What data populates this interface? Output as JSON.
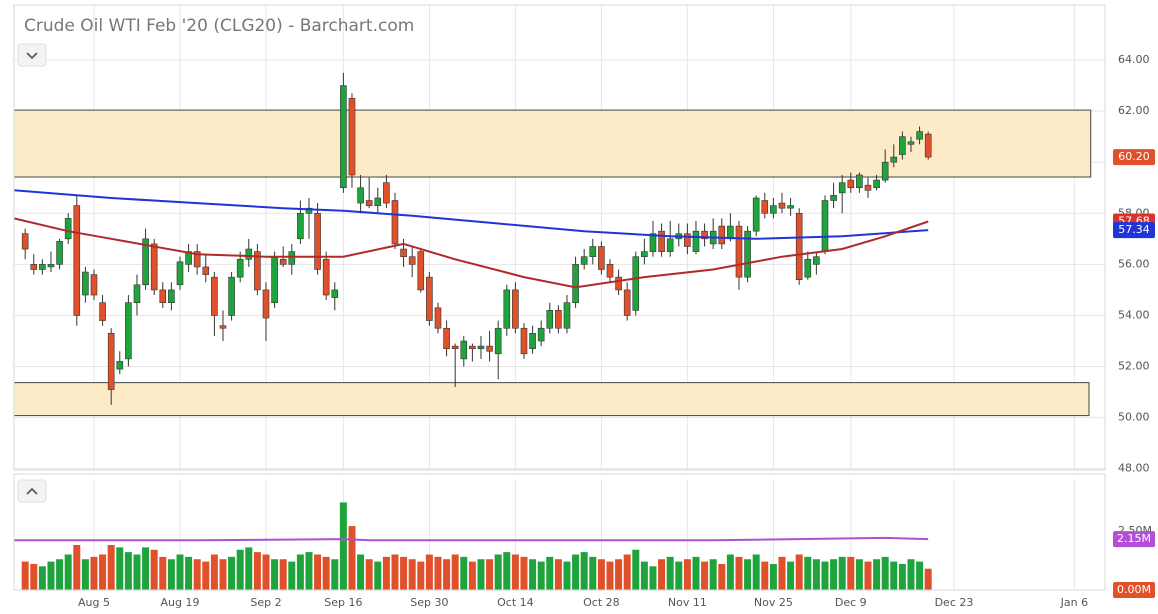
{
  "chart_data": [
    {
      "type": "candlestick",
      "title": "Crude Oil WTI Feb '20 (CLG20) - Barchart.com",
      "xlim": [
        -1.3,
        125.56
      ],
      "ylim": [
        47.95,
        66.35
      ],
      "yticks": [
        {
          "value": 48,
          "label": "48.00"
        },
        {
          "value": 50,
          "label": "50.00"
        },
        {
          "value": 52,
          "label": "52.00"
        },
        {
          "value": 54,
          "label": "54.00"
        },
        {
          "value": 56,
          "label": "56.00"
        },
        {
          "value": 58,
          "label": "58.00"
        },
        {
          "value": 60,
          "label": "60.00"
        },
        {
          "value": 62,
          "label": "62.00"
        },
        {
          "value": 64,
          "label": "64.00"
        }
      ],
      "up_color": "#1fa33c",
      "down_color": "#e0502a",
      "grid": true,
      "open": [
        57.2,
        56.0,
        55.8,
        55.9,
        56.0,
        57.0,
        58.3,
        54.8,
        55.6,
        54.5,
        53.3,
        51.9,
        52.3,
        54.5,
        55.2,
        56.8,
        55.0,
        54.5,
        55.2,
        56.0,
        56.5,
        55.9,
        55.5,
        53.6,
        54.0,
        55.5,
        56.2,
        56.5,
        55.0,
        54.5,
        56.2,
        56.0,
        57.0,
        58.0,
        58.0,
        56.2,
        54.7,
        59.0,
        62.5,
        58.4,
        58.5,
        58.3,
        59.2,
        58.5,
        56.6,
        56.3,
        56.5,
        55.5,
        54.3,
        53.5,
        52.8,
        52.3,
        52.8,
        52.7,
        52.8,
        52.5,
        53.5,
        55.0,
        53.5,
        52.7,
        53.0,
        53.5,
        54.2,
        53.5,
        54.5,
        56.0,
        56.3,
        56.7,
        56.0,
        55.5,
        55.0,
        54.2,
        56.3,
        56.5,
        57.3,
        56.5,
        57.0,
        57.2,
        56.5,
        57.3,
        56.8,
        57.5,
        57.0,
        57.5,
        55.5,
        57.3,
        58.5,
        58.0,
        58.4,
        58.2,
        58.0,
        55.5,
        56.0,
        56.5,
        58.5,
        58.8,
        59.3,
        59.0,
        59.1,
        59.0,
        59.3,
        60.0,
        60.3,
        60.7,
        60.9,
        61.1
      ],
      "high": [
        57.4,
        56.4,
        56.2,
        56.5,
        57.0,
        58.0,
        58.7,
        55.9,
        55.8,
        54.8,
        53.5,
        52.6,
        54.8,
        55.6,
        57.4,
        57.0,
        55.3,
        55.3,
        56.3,
        56.8,
        56.8,
        56.4,
        55.7,
        54.2,
        55.7,
        56.5,
        57.0,
        56.8,
        55.3,
        56.5,
        56.7,
        56.8,
        58.5,
        58.6,
        58.4,
        56.5,
        55.3,
        63.5,
        62.7,
        59.5,
        59.4,
        59.0,
        59.5,
        58.8,
        57.0,
        56.7,
        56.6,
        55.7,
        54.5,
        53.8,
        52.9,
        53.2,
        52.9,
        53.2,
        53.4,
        53.8,
        55.2,
        55.3,
        53.7,
        53.6,
        53.8,
        54.5,
        54.4,
        54.8,
        56.3,
        56.6,
        57.0,
        56.9,
        56.2,
        55.8,
        55.3,
        56.5,
        57.0,
        57.7,
        57.6,
        57.7,
        57.6,
        57.6,
        57.7,
        57.6,
        57.8,
        57.8,
        58.0,
        57.7,
        57.5,
        58.7,
        58.8,
        58.6,
        58.8,
        58.6,
        58.2,
        56.5,
        56.5,
        58.7,
        59.2,
        59.5,
        59.6,
        59.6,
        59.4,
        59.5,
        60.5,
        60.7,
        61.2,
        61.0,
        61.4,
        61.2
      ],
      "low": [
        56.2,
        55.6,
        55.6,
        55.7,
        55.8,
        56.8,
        53.6,
        54.5,
        54.6,
        53.6,
        50.5,
        51.7,
        52.0,
        54.0,
        55.0,
        54.8,
        54.3,
        54.2,
        55.0,
        55.7,
        55.6,
        55.3,
        53.2,
        53.0,
        53.8,
        55.3,
        55.9,
        54.8,
        53.0,
        54.3,
        55.9,
        55.6,
        56.8,
        57.0,
        55.6,
        54.6,
        54.2,
        58.8,
        59.0,
        58.0,
        58.2,
        58.0,
        58.2,
        56.6,
        55.9,
        55.5,
        54.9,
        53.6,
        53.3,
        52.4,
        51.2,
        52.0,
        52.2,
        52.3,
        52.2,
        51.5,
        53.2,
        53.3,
        52.3,
        52.5,
        52.8,
        53.3,
        53.3,
        53.3,
        54.3,
        55.8,
        56.0,
        55.6,
        55.3,
        54.8,
        53.8,
        54.0,
        56.0,
        56.3,
        56.3,
        56.3,
        56.7,
        56.4,
        56.4,
        56.7,
        56.6,
        56.6,
        56.9,
        55.0,
        55.3,
        57.1,
        57.8,
        57.8,
        58.0,
        57.9,
        55.2,
        55.4,
        55.6,
        56.4,
        58.2,
        58.0,
        58.8,
        58.8,
        58.6,
        58.9,
        59.2,
        59.8,
        60.1,
        60.4,
        60.7,
        60.1
      ],
      "close": [
        56.6,
        55.8,
        56.0,
        56.0,
        56.9,
        57.8,
        54.0,
        55.7,
        54.8,
        53.8,
        51.1,
        52.2,
        54.5,
        55.2,
        57.0,
        55.0,
        54.5,
        55.0,
        56.1,
        56.5,
        55.9,
        55.6,
        54.0,
        53.5,
        55.5,
        56.2,
        56.6,
        55.0,
        53.9,
        56.3,
        56.0,
        56.5,
        58.0,
        58.2,
        55.8,
        54.8,
        55.0,
        63.0,
        59.5,
        59.0,
        58.3,
        58.6,
        58.4,
        56.8,
        56.3,
        56.0,
        55.0,
        53.8,
        53.5,
        52.7,
        52.7,
        53.0,
        52.7,
        52.8,
        52.6,
        53.5,
        55.0,
        53.5,
        52.5,
        53.3,
        53.5,
        54.2,
        53.5,
        54.5,
        56.0,
        56.3,
        56.7,
        55.8,
        55.5,
        55.0,
        54.0,
        56.3,
        56.5,
        57.2,
        56.5,
        57.0,
        57.2,
        56.7,
        57.3,
        57.0,
        57.3,
        56.8,
        57.5,
        55.5,
        57.3,
        58.6,
        58.0,
        58.3,
        58.2,
        58.3,
        55.4,
        56.2,
        56.3,
        58.5,
        58.7,
        59.2,
        59.0,
        59.5,
        58.9,
        59.3,
        60.0,
        60.2,
        61.0,
        60.8,
        61.2,
        60.2
      ],
      "zones": [
        {
          "from": 59.42,
          "to": 62.04,
          "x": [
            -1.3,
            123.9
          ]
        },
        {
          "from": 50.08,
          "to": 51.37,
          "x": [
            -1.3,
            123.7
          ]
        }
      ],
      "zone_color": "#fdebc8",
      "overlays": [
        {
          "color": "#2035d8",
          "x": [
            -1.3,
            10,
            20,
            30,
            37,
            45,
            55,
            65,
            75,
            85,
            95,
            105
          ],
          "values": [
            58.9,
            58.6,
            58.4,
            58.2,
            58.1,
            57.9,
            57.6,
            57.3,
            57.1,
            57.0,
            57.1,
            57.34
          ]
        },
        {
          "color": "#b02a2a",
          "x": [
            -1.3,
            5,
            10,
            20,
            28,
            37,
            44,
            50,
            58,
            64,
            72,
            80,
            88,
            95,
            100,
            105
          ],
          "values": [
            57.8,
            57.3,
            57.0,
            56.4,
            56.3,
            56.3,
            56.8,
            56.2,
            55.5,
            55.1,
            55.5,
            55.8,
            56.3,
            56.6,
            57.1,
            57.68
          ]
        }
      ],
      "price_labels": [
        {
          "value": 57.68,
          "label": "57.68",
          "color": "#d9342b"
        },
        {
          "value": 60.2,
          "label": "60.20",
          "color": "#e0502a"
        },
        {
          "value": 57.34,
          "label": "57.34",
          "color": "#2035d8"
        }
      ]
    },
    {
      "type": "bar",
      "xlim": [
        -1.3,
        125.56
      ],
      "ylim": [
        0,
        4.9
      ],
      "yticks": [
        {
          "value": 2.5,
          "label": "2.50M"
        }
      ],
      "xticks": [
        {
          "value": 8,
          "label": "Aug 5"
        },
        {
          "value": 18,
          "label": "Aug 19"
        },
        {
          "value": 28,
          "label": "Sep 2"
        },
        {
          "value": 37,
          "label": "Sep 16"
        },
        {
          "value": 47,
          "label": "Sep 30"
        },
        {
          "value": 57,
          "label": "Oct 14"
        },
        {
          "value": 67,
          "label": "Oct 28"
        },
        {
          "value": 77,
          "label": "Nov 11"
        },
        {
          "value": 87,
          "label": "Nov 25"
        },
        {
          "value": 96,
          "label": "Dec 9"
        },
        {
          "value": 108,
          "label": "Dec 23"
        },
        {
          "value": 122,
          "label": "Jan 6"
        }
      ],
      "values": [
        1.2,
        1.1,
        1.0,
        1.2,
        1.3,
        1.5,
        1.9,
        1.3,
        1.4,
        1.5,
        1.9,
        1.8,
        1.6,
        1.5,
        1.8,
        1.7,
        1.4,
        1.3,
        1.5,
        1.4,
        1.3,
        1.2,
        1.5,
        1.3,
        1.4,
        1.7,
        1.8,
        1.6,
        1.5,
        1.3,
        1.3,
        1.2,
        1.5,
        1.6,
        1.5,
        1.4,
        1.3,
        3.7,
        2.7,
        1.5,
        1.3,
        1.2,
        1.4,
        1.5,
        1.4,
        1.3,
        1.2,
        1.5,
        1.4,
        1.3,
        1.5,
        1.4,
        1.2,
        1.3,
        1.3,
        1.5,
        1.6,
        1.5,
        1.4,
        1.3,
        1.2,
        1.4,
        1.3,
        1.2,
        1.5,
        1.6,
        1.4,
        1.3,
        1.2,
        1.3,
        1.5,
        1.7,
        1.2,
        1.0,
        1.3,
        1.4,
        1.2,
        1.3,
        1.4,
        1.2,
        1.3,
        1.1,
        1.5,
        1.4,
        1.3,
        1.5,
        1.2,
        1.1,
        1.4,
        1.2,
        1.5,
        1.4,
        1.3,
        1.2,
        1.3,
        1.4,
        1.4,
        1.3,
        1.2,
        1.3,
        1.4,
        1.2,
        1.1,
        1.3,
        1.2,
        0.9
      ],
      "overlays": [
        {
          "color": "#b24fd6",
          "x": [
            -1.3,
            20,
            37,
            40,
            60,
            80,
            100,
            105
          ],
          "values": [
            2.1,
            2.1,
            2.15,
            2.1,
            2.1,
            2.1,
            2.2,
            2.15
          ]
        }
      ],
      "price_labels": [
        {
          "value": 2.15,
          "label": "2.15M",
          "color": "#b24fd6"
        },
        {
          "value": 0,
          "label": "0.00M",
          "color": "#e0502a"
        }
      ]
    }
  ]
}
